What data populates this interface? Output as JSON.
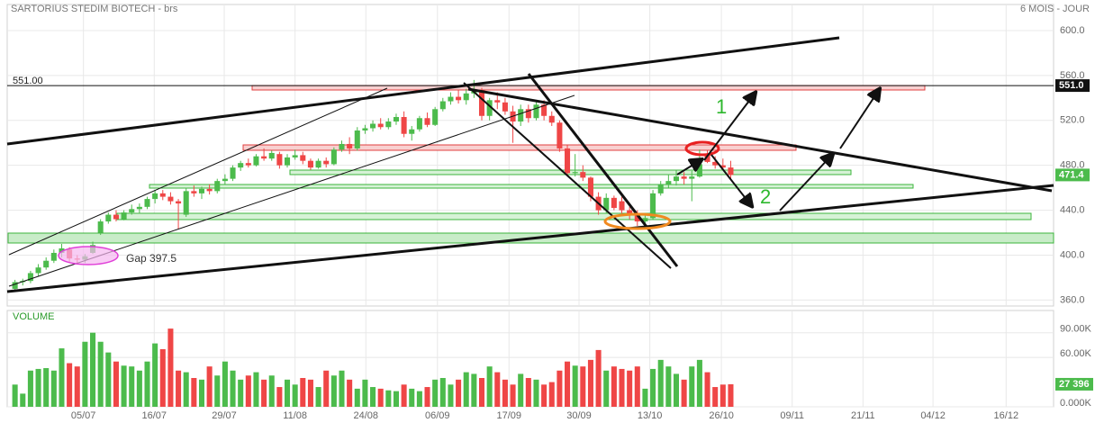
{
  "chart_data": {
    "type": "candlestick",
    "title": "SARTORIUS STEDIM BIOTECH - brs",
    "period": "6 MOIS - JOUR",
    "volume_title": "VOLUME",
    "xlim": [
      -1,
      133.5
    ],
    "xticks": [
      {
        "value": 8.8,
        "label": "05/07"
      },
      {
        "value": 17.9,
        "label": "16/07"
      },
      {
        "value": 26.9,
        "label": "29/07"
      },
      {
        "value": 36.0,
        "label": "11/08"
      },
      {
        "value": 45.1,
        "label": "24/08"
      },
      {
        "value": 54.3,
        "label": "06/09"
      },
      {
        "value": 63.5,
        "label": "17/09"
      },
      {
        "value": 72.5,
        "label": "30/09"
      },
      {
        "value": 81.6,
        "label": "13/10"
      },
      {
        "value": 90.8,
        "label": "26/10"
      },
      {
        "value": 99.9,
        "label": "09/11"
      },
      {
        "value": 109.0,
        "label": "21/11"
      },
      {
        "value": 118.0,
        "label": "04/12"
      },
      {
        "value": 127.4,
        "label": "16/12"
      }
    ],
    "ylim": [
      354.7,
      623.2
    ],
    "yticks": [
      {
        "value": 360,
        "label": "360.0"
      },
      {
        "value": 400,
        "label": "400.0"
      },
      {
        "value": 440,
        "label": "440.0"
      },
      {
        "value": 480,
        "label": "480.0"
      },
      {
        "value": 520,
        "label": "520.0"
      },
      {
        "value": 560,
        "label": "560.0"
      },
      {
        "value": 600,
        "label": "600.0"
      }
    ],
    "volume_ylim": [
      0,
      117
    ],
    "volume_yticks": [
      {
        "value": 0,
        "label": "0.000K"
      },
      {
        "value": 60,
        "label": "60.00K"
      },
      {
        "value": 90,
        "label": "90.00K"
      }
    ],
    "volume_last_label": "27 396",
    "level": {
      "value": 551,
      "label": "551.00",
      "badge": "551.0"
    },
    "up_color": "#4cbb4c",
    "down_color": "#ef4646",
    "grid": true,
    "annotations": [
      "Gap 397.5",
      "1",
      "2"
    ],
    "open": [
      370,
      376,
      377,
      384,
      389,
      395,
      402,
      405,
      397,
      396,
      402,
      420,
      430,
      436,
      432,
      438,
      441,
      443,
      450,
      455,
      452,
      448,
      436,
      457,
      455,
      459,
      457,
      466,
      468,
      478,
      482,
      480,
      488,
      486,
      490,
      480,
      487,
      489,
      484,
      478,
      484,
      481,
      494,
      499,
      495,
      511,
      513,
      517,
      514,
      519,
      523,
      508,
      512,
      522,
      516,
      530,
      537,
      541,
      538,
      544,
      546,
      524,
      538,
      536,
      528,
      519,
      530,
      522,
      534,
      524,
      518,
      495,
      473,
      474,
      469,
      452,
      440,
      451,
      448,
      440,
      436,
      430,
      433,
      455,
      463,
      466,
      470,
      468,
      470,
      490,
      483,
      480,
      478
    ],
    "high": [
      378,
      379,
      386,
      392,
      398,
      405,
      410,
      407,
      400,
      401,
      412,
      432,
      438,
      440,
      440,
      445,
      446,
      452,
      458,
      458,
      456,
      450,
      460,
      462,
      461,
      463,
      468,
      472,
      480,
      484,
      486,
      490,
      495,
      493,
      492,
      490,
      494,
      492,
      486,
      486,
      487,
      496,
      502,
      505,
      514,
      516,
      520,
      522,
      522,
      526,
      528,
      515,
      524,
      527,
      532,
      540,
      545,
      547,
      548,
      556,
      549,
      540,
      545,
      540,
      533,
      534,
      534,
      537,
      538,
      528,
      520,
      498,
      490,
      480,
      470,
      456,
      455,
      453,
      452,
      443,
      440,
      436,
      458,
      466,
      472,
      476,
      474,
      475,
      494,
      493,
      488,
      486,
      484
    ],
    "low": [
      368,
      373,
      375,
      381,
      387,
      393,
      398,
      394,
      392,
      393,
      401,
      418,
      428,
      430,
      431,
      436,
      437,
      441,
      446,
      449,
      445,
      423,
      434,
      452,
      450,
      454,
      455,
      463,
      466,
      475,
      478,
      479,
      484,
      484,
      477,
      478,
      485,
      481,
      476,
      477,
      478,
      480,
      492,
      490,
      493,
      508,
      510,
      512,
      512,
      516,
      505,
      502,
      510,
      514,
      515,
      528,
      534,
      535,
      534,
      540,
      520,
      520,
      530,
      525,
      500,
      515,
      518,
      520,
      520,
      515,
      492,
      470,
      470,
      466,
      448,
      436,
      437,
      440,
      437,
      432,
      426,
      427,
      432,
      453,
      460,
      462,
      463,
      448,
      469,
      482,
      477,
      476,
      468
    ],
    "close": [
      376,
      377,
      384,
      389,
      395,
      402,
      406,
      397,
      396,
      399,
      409,
      430,
      436,
      432,
      438,
      441,
      443,
      450,
      455,
      452,
      448,
      446,
      457,
      455,
      459,
      457,
      466,
      468,
      478,
      482,
      480,
      488,
      486,
      491,
      480,
      487,
      489,
      484,
      478,
      484,
      481,
      494,
      499,
      495,
      511,
      513,
      517,
      514,
      519,
      523,
      508,
      512,
      522,
      516,
      530,
      537,
      541,
      538,
      544,
      546,
      524,
      538,
      536,
      528,
      519,
      530,
      522,
      534,
      524,
      518,
      495,
      473,
      474,
      469,
      452,
      440,
      451,
      442,
      440,
      436,
      430,
      433,
      455,
      463,
      466,
      470,
      468,
      470,
      481,
      483,
      480,
      478,
      471.4
    ],
    "volume": [
      27,
      16,
      44,
      46,
      47,
      44,
      71,
      53,
      49,
      79,
      90,
      79,
      66,
      55,
      50,
      49,
      44,
      55,
      77,
      70,
      95,
      44,
      42,
      35,
      33,
      49,
      38,
      55,
      44,
      33,
      38,
      42,
      33,
      38,
      24,
      33,
      27,
      35,
      33,
      24,
      44,
      38,
      44,
      33,
      22,
      33,
      24,
      22,
      20,
      19,
      27,
      22,
      19,
      24,
      33,
      35,
      27,
      33,
      42,
      40,
      35,
      49,
      42,
      33,
      27,
      40,
      35,
      33,
      27,
      30,
      44,
      55,
      50,
      49,
      57,
      69,
      44,
      49,
      46,
      44,
      49,
      22,
      46,
      57,
      49,
      40,
      33,
      49,
      57,
      42,
      24,
      27,
      27.396
    ]
  }
}
